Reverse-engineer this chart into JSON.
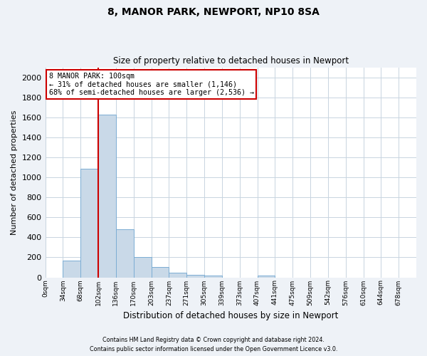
{
  "title1": "8, MANOR PARK, NEWPORT, NP10 8SA",
  "title2": "Size of property relative to detached houses in Newport",
  "xlabel": "Distribution of detached houses by size in Newport",
  "ylabel": "Number of detached properties",
  "categories": [
    "0sqm",
    "34sqm",
    "68sqm",
    "102sqm",
    "136sqm",
    "170sqm",
    "203sqm",
    "237sqm",
    "271sqm",
    "305sqm",
    "339sqm",
    "373sqm",
    "407sqm",
    "441sqm",
    "475sqm",
    "509sqm",
    "542sqm",
    "576sqm",
    "610sqm",
    "644sqm",
    "678sqm"
  ],
  "values": [
    0,
    165,
    1085,
    1625,
    480,
    200,
    100,
    45,
    25,
    20,
    0,
    0,
    20,
    0,
    0,
    0,
    0,
    0,
    0,
    0,
    0
  ],
  "bar_color": "#c9d9e8",
  "bar_edge_color": "#7badd4",
  "bar_edge_width": 0.7,
  "grid_color": "#c8d4e0",
  "annotation_text_line1": "8 MANOR PARK: 100sqm",
  "annotation_text_line2": "← 31% of detached houses are smaller (1,146)",
  "annotation_text_line3": "68% of semi-detached houses are larger (2,536) →",
  "annotation_box_color": "#cc0000",
  "ylim": [
    0,
    2100
  ],
  "yticks": [
    0,
    200,
    400,
    600,
    800,
    1000,
    1200,
    1400,
    1600,
    1800,
    2000
  ],
  "footnote1": "Contains HM Land Registry data © Crown copyright and database right 2024.",
  "footnote2": "Contains public sector information licensed under the Open Government Licence v3.0.",
  "bg_color": "#eef2f7",
  "plot_bg_color": "#ffffff"
}
